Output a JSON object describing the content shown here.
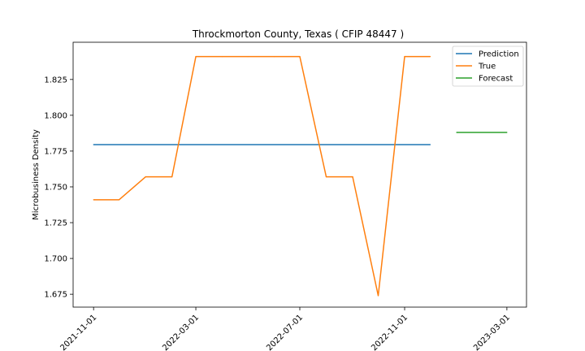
{
  "chart_data": {
    "type": "line",
    "title": "Throckmorton County, Texas ( CFIP 48447 )",
    "xlabel": "",
    "ylabel": "Microbusiness Density",
    "x_ticks": [
      "2021-11-01",
      "2022-03-01",
      "2022-07-01",
      "2022-11-01",
      "2023-03-01"
    ],
    "y_ticks": [
      "1.675",
      "1.700",
      "1.725",
      "1.750",
      "1.775",
      "1.800",
      "1.825"
    ],
    "xlim": [
      "2021-10-08",
      "2023-03-24"
    ],
    "ylim": [
      1.666,
      1.851
    ],
    "grid": false,
    "legend_position": "top-right",
    "series": [
      {
        "name": "Prediction",
        "color": "#1f77b4",
        "x": [
          "2021-11-01",
          "2022-12-01"
        ],
        "y": [
          1.7795,
          1.7795
        ]
      },
      {
        "name": "True",
        "color": "#ff7f0e",
        "x": [
          "2021-11-01",
          "2021-12-01",
          "2022-01-01",
          "2022-02-01",
          "2022-03-01",
          "2022-04-01",
          "2022-05-01",
          "2022-06-01",
          "2022-07-01",
          "2022-08-01",
          "2022-09-01",
          "2022-10-01",
          "2022-11-01",
          "2022-12-01"
        ],
        "y": [
          1.741,
          1.741,
          1.757,
          1.757,
          1.841,
          1.841,
          1.841,
          1.841,
          1.841,
          1.757,
          1.757,
          1.674,
          1.841,
          1.841
        ]
      },
      {
        "name": "Forecast",
        "color": "#2ca02c",
        "x": [
          "2023-01-01",
          "2023-03-01"
        ],
        "y": [
          1.788,
          1.788
        ]
      }
    ]
  }
}
